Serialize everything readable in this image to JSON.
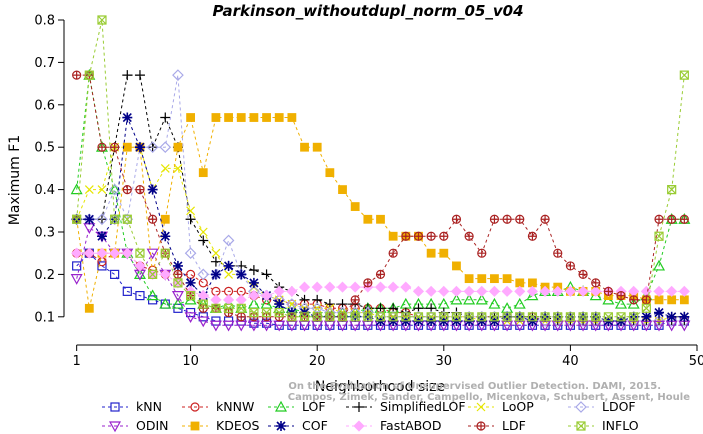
{
  "chart_data": {
    "type": "line",
    "title": "Parkinson_withoutdupl_norm_05_v04",
    "xlabel": "Neighborhood size",
    "ylabel": "Maximum F1",
    "xlim": [
      0,
      50
    ],
    "ylim": [
      0.05,
      0.8
    ],
    "x_ticks": [
      1,
      10,
      20,
      30,
      40,
      50
    ],
    "y_ticks": [
      0.1,
      0.2,
      0.3,
      0.4,
      0.5,
      0.6,
      0.7,
      0.8
    ],
    "grid": false,
    "legend_position": "bottom",
    "x": [
      1,
      2,
      3,
      4,
      5,
      6,
      7,
      8,
      9,
      10,
      11,
      12,
      13,
      14,
      15,
      16,
      17,
      18,
      19,
      20,
      21,
      22,
      23,
      24,
      25,
      26,
      27,
      28,
      29,
      30,
      31,
      32,
      33,
      34,
      35,
      36,
      37,
      38,
      39,
      40,
      41,
      42,
      43,
      44,
      45,
      46,
      47,
      48,
      49
    ],
    "series": [
      {
        "name": "kNN",
        "color": "#2222cc",
        "marker": "square",
        "values": [
          0.22,
          0.25,
          0.22,
          0.2,
          0.16,
          0.15,
          0.14,
          0.13,
          0.12,
          0.11,
          0.1,
          0.09,
          0.09,
          0.09,
          0.085,
          0.085,
          0.08,
          0.08,
          0.08,
          0.08,
          0.08,
          0.08,
          0.08,
          0.08,
          0.08,
          0.08,
          0.08,
          0.08,
          0.08,
          0.08,
          0.08,
          0.08,
          0.08,
          0.08,
          0.08,
          0.08,
          0.08,
          0.08,
          0.08,
          0.08,
          0.08,
          0.08,
          0.08,
          0.08,
          0.08,
          0.08,
          0.08,
          0.09,
          0.09
        ]
      },
      {
        "name": "kNNW",
        "color": "#cc2222",
        "marker": "circle",
        "values": [
          0.25,
          0.25,
          0.23,
          0.25,
          0.25,
          0.22,
          0.21,
          0.2,
          0.2,
          0.2,
          0.18,
          0.16,
          0.16,
          0.16,
          0.15,
          0.14,
          0.14,
          0.13,
          0.13,
          0.13,
          0.12,
          0.12,
          0.12,
          0.12,
          0.12,
          0.11,
          0.11,
          0.1,
          0.1,
          0.1,
          0.1,
          0.1,
          0.1,
          0.1,
          0.1,
          0.1,
          0.1,
          0.09,
          0.09,
          0.09,
          0.09,
          0.09,
          0.09,
          0.09,
          0.09,
          0.09,
          0.09,
          0.09,
          0.09
        ]
      },
      {
        "name": "LOF",
        "color": "#22cc22",
        "marker": "triangle",
        "values": [
          0.4,
          0.67,
          0.5,
          0.4,
          0.25,
          0.2,
          0.15,
          0.13,
          0.13,
          0.14,
          0.13,
          0.12,
          0.13,
          0.12,
          0.13,
          0.13,
          0.12,
          0.12,
          0.11,
          0.11,
          0.11,
          0.11,
          0.11,
          0.12,
          0.12,
          0.12,
          0.13,
          0.13,
          0.13,
          0.13,
          0.14,
          0.14,
          0.14,
          0.13,
          0.12,
          0.13,
          0.15,
          0.16,
          0.16,
          0.17,
          0.16,
          0.15,
          0.14,
          0.13,
          0.13,
          0.15,
          0.22,
          0.33,
          0.33
        ]
      },
      {
        "name": "SimplifiedLOF",
        "color": "#000000",
        "marker": "plus",
        "values": [
          0.33,
          0.33,
          0.33,
          0.5,
          0.67,
          0.67,
          0.5,
          0.57,
          0.5,
          0.33,
          0.28,
          0.23,
          0.22,
          0.22,
          0.21,
          0.2,
          0.17,
          0.16,
          0.14,
          0.14,
          0.13,
          0.13,
          0.13,
          0.12,
          0.12,
          0.12,
          0.11,
          0.12,
          0.12,
          0.11,
          0.11,
          0.1,
          0.1,
          0.1,
          0.1,
          0.1,
          0.1,
          0.1,
          0.09,
          0.09,
          0.09,
          0.09,
          0.09,
          0.09,
          0.09,
          0.09,
          0.09,
          0.09,
          0.09
        ]
      },
      {
        "name": "LoOP",
        "color": "#e6e600",
        "marker": "x",
        "values": [
          0.33,
          0.4,
          0.4,
          0.5,
          0.5,
          0.5,
          0.4,
          0.45,
          0.45,
          0.35,
          0.3,
          0.25,
          0.2,
          0.2,
          0.17,
          0.15,
          0.14,
          0.13,
          0.12,
          0.12,
          0.12,
          0.11,
          0.11,
          0.11,
          0.1,
          0.1,
          0.1,
          0.1,
          0.1,
          0.1,
          0.1,
          0.1,
          0.09,
          0.09,
          0.09,
          0.09,
          0.09,
          0.09,
          0.09,
          0.09,
          0.09,
          0.09,
          0.09,
          0.09,
          0.09,
          0.09,
          0.09,
          0.1,
          0.1
        ]
      },
      {
        "name": "LDOF",
        "color": "#a9a9e8",
        "marker": "diamond",
        "values": [
          0.33,
          0.33,
          0.33,
          0.4,
          0.33,
          0.5,
          0.5,
          0.5,
          0.67,
          0.25,
          0.2,
          0.2,
          0.28,
          0.2,
          0.16,
          0.15,
          0.14,
          0.13,
          0.12,
          0.12,
          0.11,
          0.11,
          0.11,
          0.11,
          0.1,
          0.1,
          0.1,
          0.1,
          0.1,
          0.1,
          0.1,
          0.1,
          0.1,
          0.1,
          0.1,
          0.1,
          0.09,
          0.09,
          0.09,
          0.09,
          0.09,
          0.09,
          0.09,
          0.09,
          0.09,
          0.09,
          0.09,
          0.09,
          0.09
        ]
      },
      {
        "name": "ODIN",
        "color": "#9922cc",
        "marker": "triangle-down",
        "values": [
          0.19,
          0.31,
          0.29,
          0.25,
          0.25,
          0.2,
          0.25,
          0.2,
          0.15,
          0.1,
          0.09,
          0.08,
          0.08,
          0.08,
          0.08,
          0.08,
          0.08,
          0.08,
          0.08,
          0.08,
          0.08,
          0.08,
          0.08,
          0.08,
          0.08,
          0.08,
          0.08,
          0.08,
          0.08,
          0.08,
          0.08,
          0.08,
          0.08,
          0.08,
          0.08,
          0.08,
          0.08,
          0.08,
          0.08,
          0.08,
          0.08,
          0.08,
          0.08,
          0.08,
          0.08,
          0.08,
          0.08,
          0.08,
          0.08
        ]
      },
      {
        "name": "KDEOS",
        "color": "#f0b000",
        "marker": "square-filled",
        "values": [
          0.33,
          0.12,
          0.25,
          0.25,
          0.5,
          0.5,
          0.2,
          0.33,
          0.5,
          0.57,
          0.44,
          0.57,
          0.57,
          0.57,
          0.57,
          0.57,
          0.57,
          0.57,
          0.5,
          0.5,
          0.44,
          0.4,
          0.36,
          0.33,
          0.33,
          0.29,
          0.29,
          0.29,
          0.25,
          0.25,
          0.22,
          0.19,
          0.19,
          0.19,
          0.19,
          0.18,
          0.18,
          0.17,
          0.17,
          0.16,
          0.16,
          0.16,
          0.15,
          0.15,
          0.15,
          0.14,
          0.14,
          0.14,
          0.14
        ]
      },
      {
        "name": "COF",
        "color": "#000088",
        "marker": "star",
        "values": [
          0.33,
          0.33,
          0.29,
          0.33,
          0.57,
          0.5,
          0.4,
          0.29,
          0.22,
          0.18,
          0.15,
          0.2,
          0.22,
          0.2,
          0.18,
          0.15,
          0.13,
          0.11,
          0.11,
          0.1,
          0.1,
          0.1,
          0.1,
          0.1,
          0.09,
          0.09,
          0.09,
          0.09,
          0.09,
          0.09,
          0.09,
          0.09,
          0.09,
          0.09,
          0.1,
          0.1,
          0.09,
          0.1,
          0.1,
          0.1,
          0.1,
          0.1,
          0.09,
          0.09,
          0.1,
          0.1,
          0.11,
          0.1,
          0.1
        ]
      },
      {
        "name": "FastABOD",
        "color": "#ffaaff",
        "marker": "diamond-filled",
        "values": [
          0.25,
          0.25,
          0.25,
          0.25,
          0.25,
          0.22,
          0.2,
          0.2,
          0.18,
          0.16,
          0.15,
          0.14,
          0.14,
          0.14,
          0.15,
          0.15,
          0.16,
          0.16,
          0.17,
          0.17,
          0.17,
          0.17,
          0.17,
          0.17,
          0.17,
          0.17,
          0.17,
          0.16,
          0.16,
          0.16,
          0.16,
          0.16,
          0.16,
          0.16,
          0.16,
          0.16,
          0.16,
          0.16,
          0.16,
          0.16,
          0.16,
          0.16,
          0.16,
          0.16,
          0.16,
          0.16,
          0.16,
          0.16,
          0.16
        ]
      },
      {
        "name": "LDF",
        "color": "#aa2222",
        "marker": "circle-plus",
        "values": [
          0.67,
          0.67,
          0.5,
          0.5,
          0.4,
          0.4,
          0.33,
          0.25,
          0.2,
          0.15,
          0.12,
          0.12,
          0.11,
          0.1,
          0.1,
          0.1,
          0.1,
          0.1,
          0.1,
          0.1,
          0.1,
          0.1,
          0.14,
          0.18,
          0.2,
          0.25,
          0.29,
          0.29,
          0.29,
          0.29,
          0.33,
          0.29,
          0.25,
          0.33,
          0.33,
          0.33,
          0.29,
          0.33,
          0.25,
          0.22,
          0.2,
          0.18,
          0.16,
          0.15,
          0.14,
          0.14,
          0.33,
          0.33,
          0.33
        ]
      },
      {
        "name": "INFLO",
        "color": "#99cc33",
        "marker": "star-box",
        "values": [
          0.33,
          0.67,
          0.8,
          0.33,
          0.33,
          0.25,
          0.2,
          0.25,
          0.18,
          0.15,
          0.13,
          0.12,
          0.12,
          0.12,
          0.11,
          0.11,
          0.11,
          0.1,
          0.1,
          0.1,
          0.1,
          0.1,
          0.1,
          0.1,
          0.1,
          0.1,
          0.1,
          0.1,
          0.1,
          0.1,
          0.1,
          0.1,
          0.1,
          0.1,
          0.1,
          0.1,
          0.1,
          0.1,
          0.1,
          0.1,
          0.1,
          0.1,
          0.1,
          0.1,
          0.1,
          0.12,
          0.29,
          0.4,
          0.67
        ]
      }
    ],
    "legend_rows": [
      [
        "kNN",
        "kNNW",
        "LOF",
        "SimplifiedLOF",
        "LoOP",
        "LDOF"
      ],
      [
        "ODIN",
        "KDEOS",
        "COF",
        "FastABOD",
        "LDF",
        "INFLO"
      ]
    ],
    "watermark": [
      "Campos, Zimek, Sander, Campello, Micenkova, Schubert, Assent, Houle",
      "On the Evaluation of Unsupervised Outlier Detection. DAMI, 2015."
    ]
  }
}
